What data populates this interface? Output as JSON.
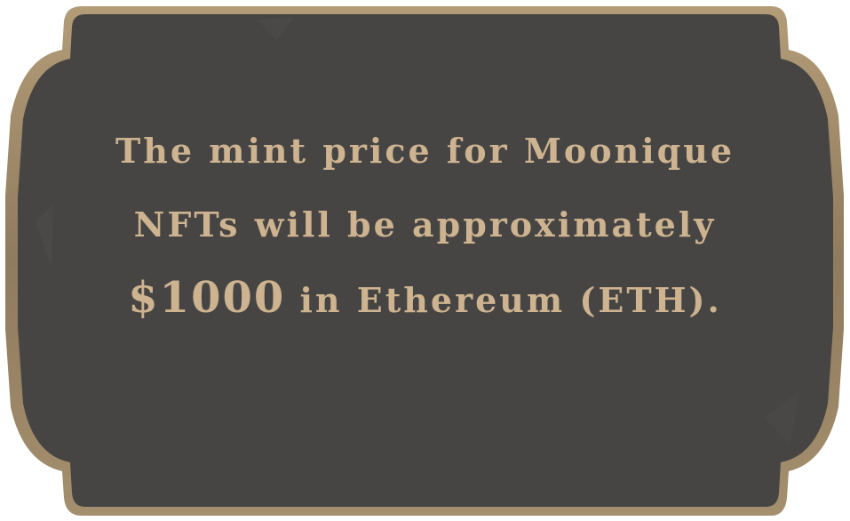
{
  "plaque": {
    "text_before_price": "The mint price for Moonique NFTs will be approximately ",
    "price": "$1000",
    "text_after_price": " in Ethereum (ETH).",
    "colors": {
      "background": "#ffffff",
      "panel": "#464544",
      "frame": "#a08c6c",
      "text": "#cdb38f"
    }
  }
}
